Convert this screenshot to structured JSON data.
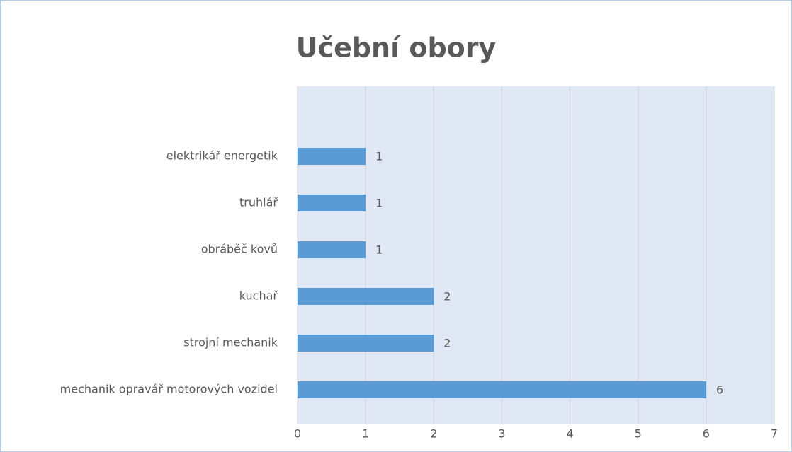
{
  "chart_data": {
    "type": "bar",
    "orientation": "horizontal",
    "title": "Učební obory",
    "categories": [
      "mechanik opravář motorových vozidel",
      "strojní mechanik",
      "kuchař",
      "obráběč kovů",
      "truhlář",
      "elektrikář energetik",
      null
    ],
    "values": [
      6,
      2,
      2,
      1,
      1,
      1,
      null
    ],
    "color": "#5b9bd5",
    "xlim": [
      0,
      7
    ],
    "xticks": [
      0,
      1,
      2,
      3,
      4,
      5,
      6,
      7
    ],
    "grid": true
  }
}
